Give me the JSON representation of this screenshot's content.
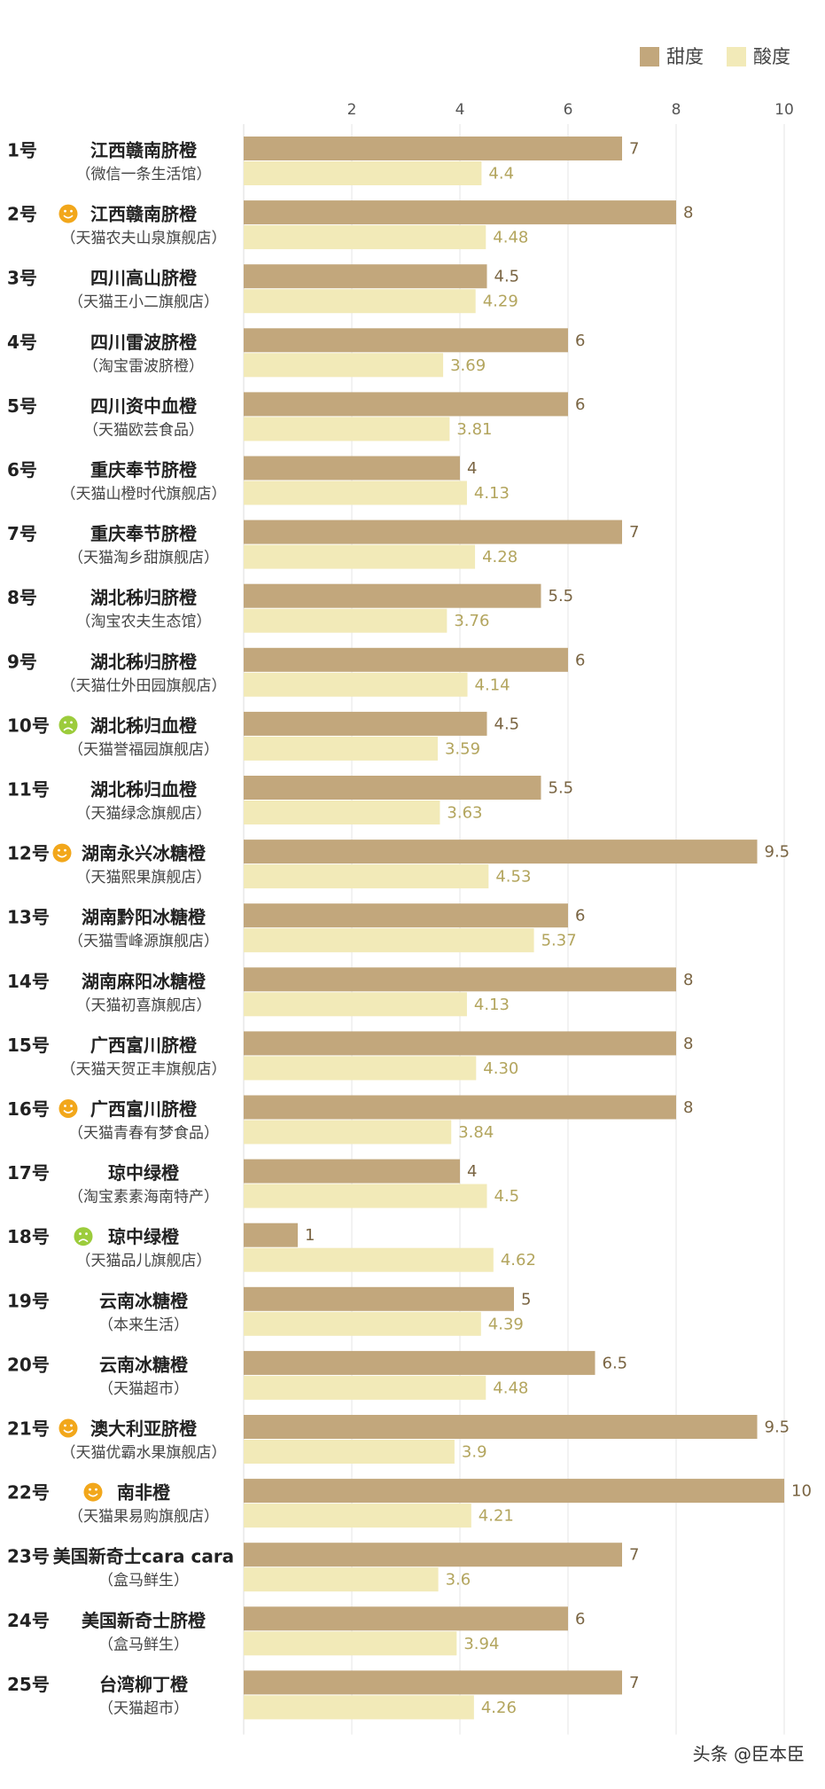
{
  "chart_data": {
    "type": "bar",
    "categories": [
      "江西赣南脐橙",
      "江西赣南脐橙",
      "四川高山脐橙",
      "四川雷波脐橙",
      "四川资中血橙",
      "重庆奉节脐橙",
      "重庆奉节脐橙",
      "湖北秭归脐橙",
      "湖北秭归脐橙",
      "湖北秭归血橙",
      "湖北秭归血橙",
      "湖南永兴冰糖橙",
      "湖南黔阳冰糖橙",
      "湖南麻阳冰糖橙",
      "广西富川脐橙",
      "广西富川脐橙",
      "琼中绿橙",
      "琼中绿橙",
      "云南冰糖橙",
      "云南冰糖橙",
      "澳大利亚脐橙",
      "南非橙",
      "美国新奇士cara cara",
      "美国新奇士脐橙",
      "台湾柳丁橙"
    ],
    "category_numbers": [
      "1号",
      "2号",
      "3号",
      "4号",
      "5号",
      "6号",
      "7号",
      "8号",
      "9号",
      "10号",
      "11号",
      "12号",
      "13号",
      "14号",
      "15号",
      "16号",
      "17号",
      "18号",
      "19号",
      "20号",
      "21号",
      "22号",
      "23号",
      "24号",
      "25号"
    ],
    "category_sources": [
      "（微信一条生活馆）",
      "（天猫农夫山泉旗舰店）",
      "（天猫王小二旗舰店）",
      "（淘宝雷波脐橙）",
      "（天猫欧芸食品）",
      "（天猫山橙时代旗舰店）",
      "（天猫淘乡甜旗舰店）",
      "（淘宝农夫生态馆）",
      "（天猫仕外田园旗舰店）",
      "（天猫誉福园旗舰店）",
      "（天猫绿念旗舰店）",
      "（天猫熙果旗舰店）",
      "（天猫雪峰源旗舰店）",
      "（天猫初喜旗舰店）",
      "（天猫天贺正丰旗舰店）",
      "（天猫青春有梦食品）",
      "（淘宝素素海南特产）",
      "（天猫品儿旗舰店）",
      "（本来生活）",
      "（天猫超市）",
      "（天猫优霸水果旗舰店）",
      "（天猫果易购旗舰店）",
      "（盒马鲜生）",
      "（盒马鲜生）",
      "（天猫超市）"
    ],
    "series": [
      {
        "name": "甜度",
        "color": "#c2a77c",
        "label_color": "#7a6543",
        "values": [
          7,
          8,
          4.5,
          6,
          6,
          4,
          7,
          5.5,
          6,
          4.5,
          5.5,
          9.5,
          6,
          8,
          8,
          8,
          4,
          1,
          5,
          6.5,
          9.5,
          10,
          7,
          6,
          7
        ]
      },
      {
        "name": "酸度",
        "color": "#f2eab8",
        "label_color": "#b3a55e",
        "values": [
          4.4,
          4.48,
          4.29,
          3.69,
          3.81,
          4.13,
          4.28,
          3.76,
          4.14,
          3.59,
          3.63,
          4.53,
          5.37,
          4.13,
          4.3,
          3.84,
          4.5,
          4.62,
          4.39,
          4.48,
          3.9,
          4.21,
          3.6,
          3.94,
          4.26
        ],
        "value_labels": [
          "4.4",
          "4.48",
          "4.29",
          "3.69",
          "3.81",
          "4.13",
          "4.28",
          "3.76",
          "4.14",
          "3.59",
          "3.63",
          "4.53",
          "5.37",
          "4.13",
          "4.30",
          "3.84",
          "4.5",
          "4.62",
          "4.39",
          "4.48",
          "3.9",
          "4.21",
          "3.6",
          "3.94",
          "4.26"
        ]
      }
    ],
    "xlim": [
      0,
      10
    ],
    "xticks": [
      2,
      4,
      6,
      8,
      10
    ],
    "grid": true,
    "legend": "top-right",
    "watermark": "头条 @臣本臣"
  }
}
